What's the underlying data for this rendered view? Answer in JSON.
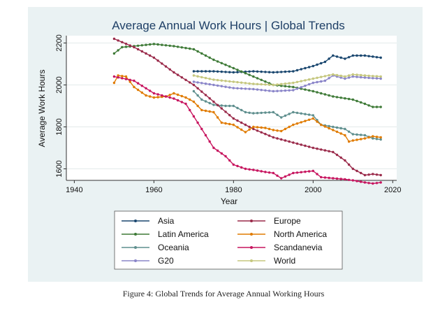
{
  "figure_caption": "Figure 4: Global Trends for Average Annual Working Hours",
  "chart_data": {
    "type": "line",
    "title": "Average Annual Work Hours | Global Trends",
    "xlabel": "Year",
    "ylabel": "Average Work Hours",
    "xlim": [
      1938,
      2021
    ],
    "ylim": [
      1545,
      2235
    ],
    "xticks": [
      1940,
      1960,
      1980,
      2000,
      2020
    ],
    "yticks": [
      1600,
      1800,
      2000,
      2200
    ],
    "grid": true,
    "legend_position": "bottom",
    "series": [
      {
        "name": "Asia",
        "color": "#1a476f",
        "points": [
          [
            1970,
            2065
          ],
          [
            1975,
            2065
          ],
          [
            1980,
            2060
          ],
          [
            1985,
            2065
          ],
          [
            1990,
            2060
          ],
          [
            1995,
            2065
          ],
          [
            2000,
            2090
          ],
          [
            2003,
            2110
          ],
          [
            2005,
            2140
          ],
          [
            2008,
            2125
          ],
          [
            2010,
            2140
          ],
          [
            2013,
            2140
          ],
          [
            2017,
            2130
          ]
        ]
      },
      {
        "name": "Latin America",
        "color": "#3e7a37",
        "points": [
          [
            1950,
            2150
          ],
          [
            1952,
            2180
          ],
          [
            1955,
            2185
          ],
          [
            1960,
            2195
          ],
          [
            1965,
            2185
          ],
          [
            1970,
            2170
          ],
          [
            1975,
            2120
          ],
          [
            1980,
            2080
          ],
          [
            1985,
            2040
          ],
          [
            1990,
            2000
          ],
          [
            1995,
            1990
          ],
          [
            2000,
            1970
          ],
          [
            2005,
            1945
          ],
          [
            2010,
            1930
          ],
          [
            2013,
            1910
          ],
          [
            2015,
            1895
          ],
          [
            2017,
            1895
          ]
        ]
      },
      {
        "name": "Oceania",
        "color": "#5f8f8e",
        "points": [
          [
            1970,
            1970
          ],
          [
            1972,
            1930
          ],
          [
            1975,
            1905
          ],
          [
            1978,
            1900
          ],
          [
            1980,
            1900
          ],
          [
            1983,
            1870
          ],
          [
            1985,
            1865
          ],
          [
            1990,
            1870
          ],
          [
            1992,
            1845
          ],
          [
            1995,
            1870
          ],
          [
            2000,
            1855
          ],
          [
            2002,
            1810
          ],
          [
            2005,
            1800
          ],
          [
            2008,
            1790
          ],
          [
            2010,
            1765
          ],
          [
            2013,
            1760
          ],
          [
            2015,
            1745
          ],
          [
            2017,
            1740
          ]
        ]
      },
      {
        "name": "G20",
        "color": "#8a85c9",
        "points": [
          [
            1970,
            2015
          ],
          [
            1975,
            2000
          ],
          [
            1980,
            1985
          ],
          [
            1985,
            1980
          ],
          [
            1990,
            1970
          ],
          [
            1995,
            1975
          ],
          [
            2000,
            2010
          ],
          [
            2003,
            2020
          ],
          [
            2005,
            2045
          ],
          [
            2008,
            2030
          ],
          [
            2010,
            2040
          ],
          [
            2013,
            2035
          ],
          [
            2017,
            2030
          ]
        ]
      },
      {
        "name": "Europe",
        "color": "#9a2a4a",
        "points": [
          [
            1950,
            2220
          ],
          [
            1955,
            2180
          ],
          [
            1960,
            2130
          ],
          [
            1965,
            2060
          ],
          [
            1970,
            2000
          ],
          [
            1975,
            1920
          ],
          [
            1980,
            1840
          ],
          [
            1985,
            1790
          ],
          [
            1990,
            1750
          ],
          [
            1995,
            1725
          ],
          [
            2000,
            1700
          ],
          [
            2005,
            1680
          ],
          [
            2008,
            1640
          ],
          [
            2010,
            1600
          ],
          [
            2013,
            1570
          ],
          [
            2015,
            1575
          ],
          [
            2017,
            1570
          ]
        ]
      },
      {
        "name": "North America",
        "color": "#e07b00",
        "points": [
          [
            1950,
            2010
          ],
          [
            1951,
            2045
          ],
          [
            1953,
            2040
          ],
          [
            1955,
            1990
          ],
          [
            1958,
            1950
          ],
          [
            1960,
            1940
          ],
          [
            1963,
            1945
          ],
          [
            1965,
            1960
          ],
          [
            1968,
            1940
          ],
          [
            1970,
            1920
          ],
          [
            1972,
            1880
          ],
          [
            1975,
            1870
          ],
          [
            1977,
            1820
          ],
          [
            1980,
            1810
          ],
          [
            1983,
            1775
          ],
          [
            1985,
            1800
          ],
          [
            1988,
            1795
          ],
          [
            1990,
            1785
          ],
          [
            1992,
            1780
          ],
          [
            1995,
            1810
          ],
          [
            2000,
            1840
          ],
          [
            2002,
            1810
          ],
          [
            2005,
            1785
          ],
          [
            2008,
            1760
          ],
          [
            2009,
            1730
          ],
          [
            2010,
            1735
          ],
          [
            2013,
            1745
          ],
          [
            2015,
            1755
          ],
          [
            2017,
            1750
          ]
        ]
      },
      {
        "name": "Scandanevia",
        "color": "#c7155f",
        "points": [
          [
            1950,
            2040
          ],
          [
            1955,
            2020
          ],
          [
            1960,
            1960
          ],
          [
            1965,
            1935
          ],
          [
            1968,
            1910
          ],
          [
            1970,
            1850
          ],
          [
            1972,
            1790
          ],
          [
            1975,
            1700
          ],
          [
            1978,
            1660
          ],
          [
            1980,
            1620
          ],
          [
            1983,
            1600
          ],
          [
            1985,
            1595
          ],
          [
            1988,
            1585
          ],
          [
            1990,
            1580
          ],
          [
            1992,
            1555
          ],
          [
            1995,
            1580
          ],
          [
            2000,
            1590
          ],
          [
            2002,
            1560
          ],
          [
            2005,
            1555
          ],
          [
            2008,
            1550
          ],
          [
            2010,
            1545
          ],
          [
            2013,
            1535
          ],
          [
            2015,
            1530
          ],
          [
            2017,
            1535
          ]
        ]
      },
      {
        "name": "World",
        "color": "#c5c77e",
        "points": [
          [
            1970,
            2045
          ],
          [
            1975,
            2025
          ],
          [
            1980,
            2015
          ],
          [
            1985,
            2005
          ],
          [
            1990,
            2000
          ],
          [
            1995,
            2010
          ],
          [
            2000,
            2030
          ],
          [
            2005,
            2050
          ],
          [
            2008,
            2040
          ],
          [
            2010,
            2050
          ],
          [
            2013,
            2045
          ],
          [
            2017,
            2040
          ]
        ]
      }
    ]
  }
}
